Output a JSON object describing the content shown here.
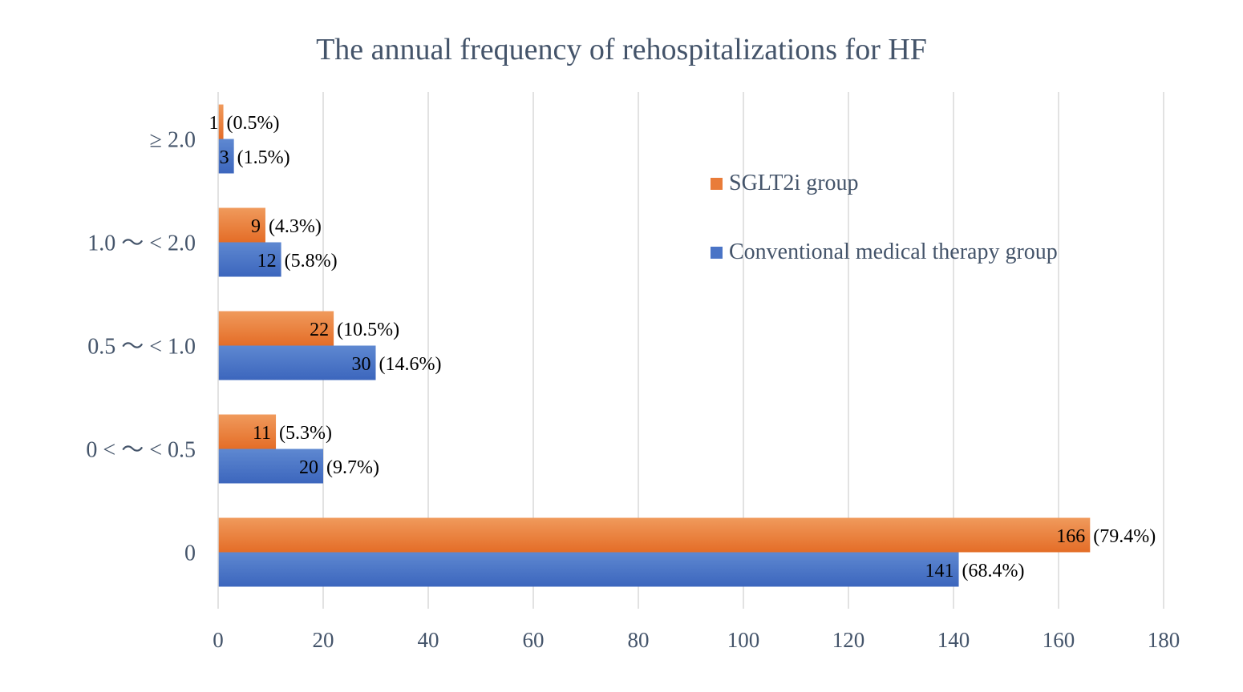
{
  "chart_data": {
    "type": "bar",
    "orientation": "horizontal",
    "title": "The annual frequency of rehospitalizations for HF",
    "xlabel": "",
    "ylabel": "",
    "xlim": [
      0,
      180
    ],
    "xticks": [
      0,
      20,
      40,
      60,
      80,
      100,
      120,
      140,
      160,
      180
    ],
    "categories": [
      "≥ 2.0",
      "1.0 ～ < 2.0",
      "0.5 ～ < 1.0",
      "0 < ～ < 0.5",
      "0"
    ],
    "series": [
      {
        "name": "SGLT2i group",
        "color": "#ed7d31",
        "values": [
          1,
          9,
          22,
          11,
          166
        ],
        "percent_labels": [
          "(0.5%)",
          "(4.3%)",
          "(10.5%)",
          "(5.3%)",
          "(79.4%)"
        ]
      },
      {
        "name": "Conventional medical therapy group",
        "color": "#4472c4",
        "values": [
          3,
          12,
          30,
          20,
          141
        ],
        "percent_labels": [
          "(1.5%)",
          "(5.8%)",
          "(14.6%)",
          "(9.7%)",
          "(68.4%)"
        ]
      }
    ],
    "grid": true,
    "legend_position": "right"
  }
}
